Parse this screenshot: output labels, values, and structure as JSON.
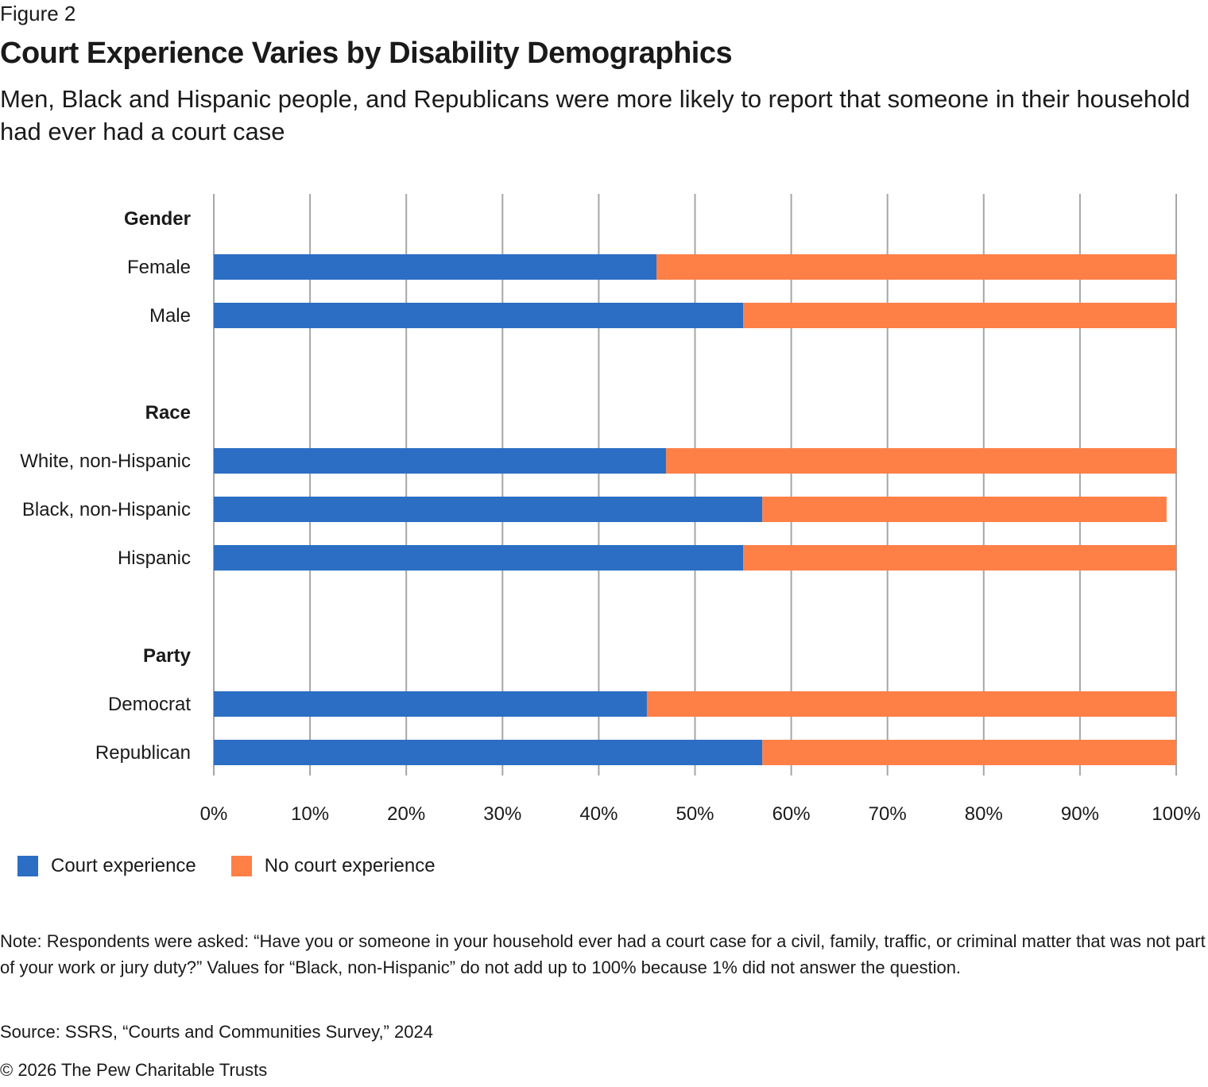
{
  "figure_label": "Figure 2",
  "title": "Court Experience Varies by Disability Demographics",
  "subtitle": "Men, Black and Hispanic people, and Republicans were more likely to report that someone in their household had ever had a court case",
  "colors": {
    "court": "#2b6ec3",
    "no_court": "#fe8047",
    "grid": "#a6a6a6"
  },
  "chart_data": {
    "type": "bar",
    "orientation": "horizontal",
    "stacked": true,
    "title": "Court Experience Varies by Disability Demographics",
    "xlabel": "",
    "ylabel": "",
    "xlim": [
      0,
      100
    ],
    "x_ticks": [
      "0%",
      "10%",
      "20%",
      "30%",
      "40%",
      "50%",
      "60%",
      "70%",
      "80%",
      "90%",
      "100%"
    ],
    "grid": true,
    "legend_position": "bottom-left",
    "groups": [
      {
        "name": "Gender",
        "categories": [
          "Female",
          "Male"
        ]
      },
      {
        "name": "Race",
        "categories": [
          "White, non-Hispanic",
          "Black, non-Hispanic",
          "Hispanic"
        ]
      },
      {
        "name": "Party",
        "categories": [
          "Democrat",
          "Republican"
        ]
      }
    ],
    "categories": [
      "Female",
      "Male",
      "White, non-Hispanic",
      "Black, non-Hispanic",
      "Hispanic",
      "Democrat",
      "Republican"
    ],
    "series": [
      {
        "name": "Court experience",
        "color": "#2b6ec3",
        "values": [
          46,
          55,
          47,
          57,
          55,
          45,
          57
        ]
      },
      {
        "name": "No court experience",
        "color": "#fe8047",
        "values": [
          54,
          45,
          53,
          42,
          45,
          55,
          43
        ]
      }
    ]
  },
  "legend": [
    {
      "label": "Court experience",
      "color": "#2b6ec3"
    },
    {
      "label": "No court experience",
      "color": "#fe8047"
    }
  ],
  "note": "Note: Respondents were asked: “Have you or someone in your household ever had a court case for a civil, family, traffic, or criminal matter that was not part of your work or jury duty?” Values for “Black, non-Hispanic” do not add up to 100% because 1% did not answer the question.",
  "source": "Source: SSRS, “Courts and Communities Survey,” 2024",
  "copyright": "© 2026 The Pew Charitable Trusts"
}
